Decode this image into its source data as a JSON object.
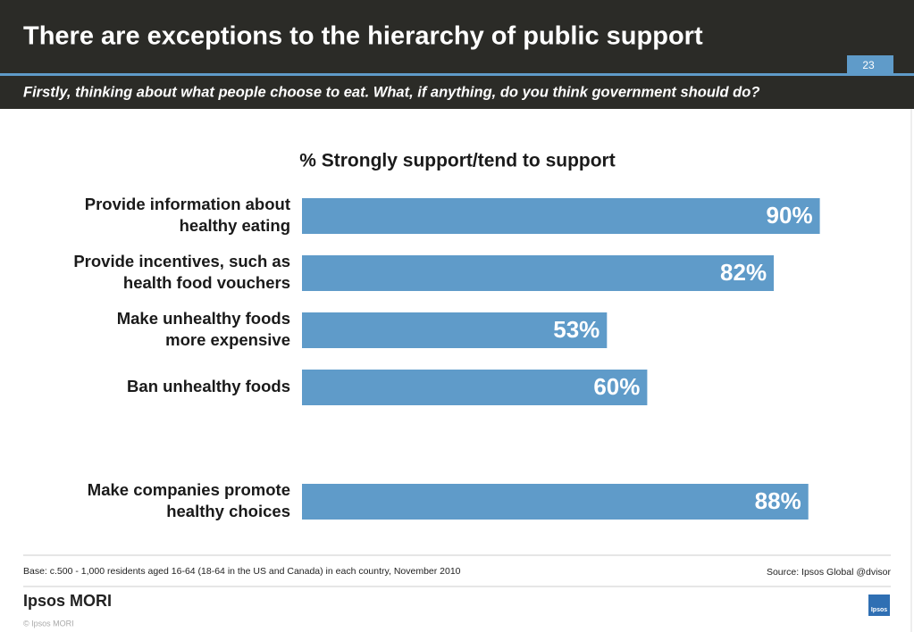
{
  "header": {
    "title": "There are exceptions to the hierarchy of public support",
    "slide_number": "23",
    "question": "Firstly, thinking about what people choose to eat. What, if anything, do you think government should do?"
  },
  "chart_data": {
    "type": "hbar",
    "title": "% Strongly support/tend to support",
    "categories": [
      [
        "Provide information about",
        "healthy eating"
      ],
      [
        "Provide incentives, such as",
        "health food vouchers"
      ],
      [
        "Make unhealthy foods",
        "more expensive"
      ],
      [
        "Ban unhealthy foods"
      ],
      null,
      [
        "Make companies promote",
        "healthy choices"
      ]
    ],
    "values": [
      90,
      82,
      53,
      60,
      null,
      88
    ],
    "value_labels": [
      "90%",
      "82%",
      "53%",
      "60%",
      null,
      "88%"
    ],
    "color": "#5f9bc9",
    "xlim": [
      0,
      100
    ]
  },
  "footer": {
    "base": "Base: c.500 - 1,000 residents aged 16-64 (18-64 in the US and Canada) in each country, November 2010",
    "source": "Source: Ipsos Global @dvisor",
    "brand": "Ipsos MORI",
    "copyright": "© Ipsos MORI",
    "badge": "Ipsos"
  }
}
